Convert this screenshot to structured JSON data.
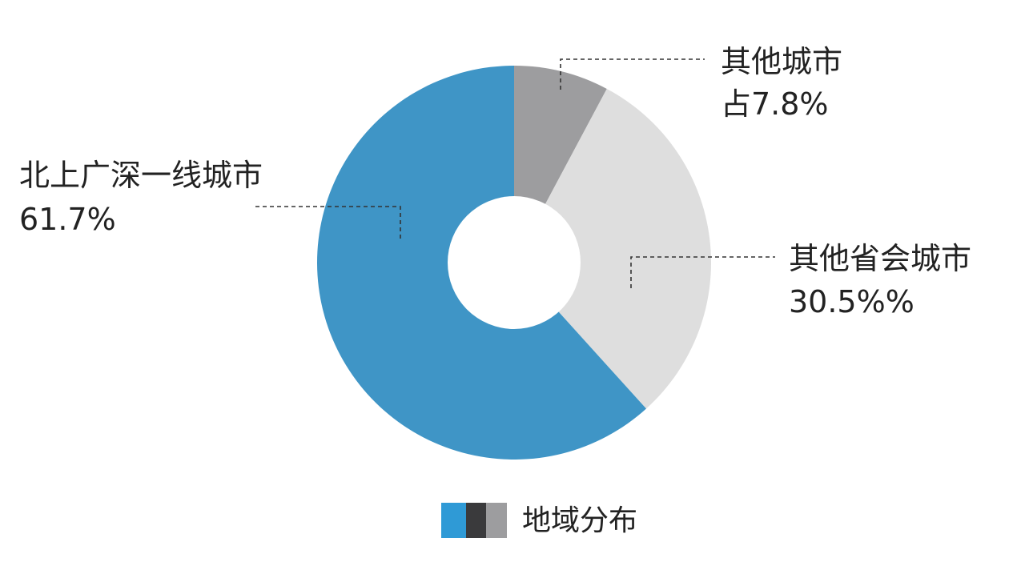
{
  "chart_data": {
    "type": "pie",
    "variant": "donut",
    "start_angle_deg": 0,
    "direction": "clockwise",
    "slices": [
      {
        "name": "其他城市",
        "label_value": "占7.8%",
        "value": 7.8,
        "color": "#9d9d9f"
      },
      {
        "name": "其他省会城市",
        "label_value": "30.5%%",
        "value": 30.5,
        "color": "#dedede"
      },
      {
        "name": "北上广深一线城市",
        "label_value": "61.7%",
        "value": 61.7,
        "color": "#3f95c6"
      }
    ],
    "legend": {
      "placement": "bottom-center",
      "text": "地域分布",
      "swatch_colors": [
        "#2f9ad6",
        "#3a3a3c",
        "#9d9d9f"
      ]
    }
  }
}
